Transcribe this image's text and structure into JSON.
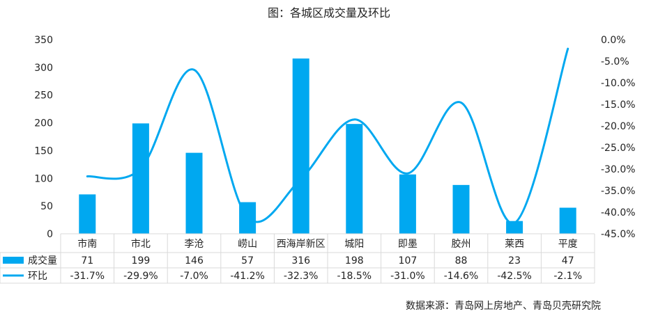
{
  "title": "图：各城区成交量及环比",
  "source": "数据来源：青岛网上房地产、青岛贝壳研究院",
  "chart_data": {
    "type": "bar",
    "title": "图：各城区成交量及环比",
    "categories": [
      "市南",
      "市北",
      "李沧",
      "崂山",
      "西海岸新区",
      "城阳",
      "即墨",
      "胶州",
      "莱西",
      "平度"
    ],
    "series": [
      {
        "name": "成交量",
        "type": "bar",
        "axis": "left",
        "values": [
          71,
          199,
          146,
          57,
          316,
          198,
          107,
          88,
          23,
          47
        ],
        "labels": [
          "71",
          "199",
          "146",
          "57",
          "316",
          "198",
          "107",
          "88",
          "23",
          "47"
        ]
      },
      {
        "name": "环比",
        "type": "line",
        "axis": "right",
        "smooth": true,
        "values": [
          -31.7,
          -29.9,
          -7.0,
          -41.2,
          -32.3,
          -18.5,
          -31.0,
          -14.6,
          -42.5,
          -2.1
        ],
        "labels": [
          "-31.7%",
          "-29.9%",
          "-7.0%",
          "-41.2%",
          "-32.3%",
          "-18.5%",
          "-31.0%",
          "-14.6%",
          "-42.5%",
          "-2.1%"
        ]
      }
    ],
    "ylim": [
      0,
      350
    ],
    "yticks": [
      "0",
      "50",
      "100",
      "150",
      "200",
      "250",
      "300",
      "350"
    ],
    "y2lim": [
      -45,
      0
    ],
    "y2ticks": [
      "0.0%",
      "-5.0%",
      "-10.0%",
      "-15.0%",
      "-20.0%",
      "-25.0%",
      "-30.0%",
      "-35.0%",
      "-40.0%",
      "-45.0%"
    ],
    "grid": false,
    "legend": "data-table",
    "colors": {
      "bar": "#00a8f0",
      "line": "#00a8f0",
      "table_border": "#d9d9d9"
    }
  }
}
